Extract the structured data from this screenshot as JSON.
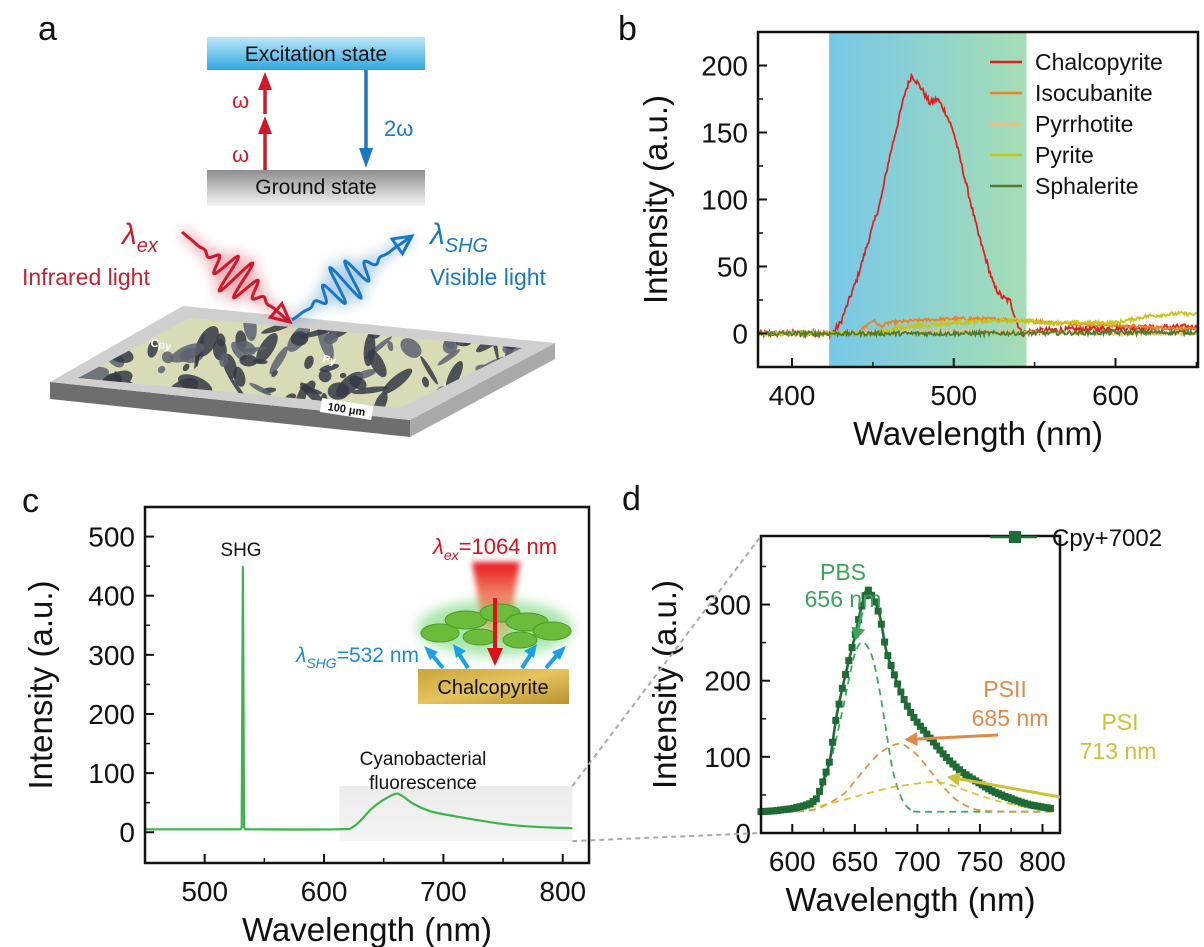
{
  "panel_labels": {
    "a": "a",
    "b": "b",
    "c": "c",
    "d": "d"
  },
  "panel_a": {
    "excitation_state": "Excitation state",
    "ground_state": "Ground state",
    "omega_upper": "ω",
    "omega_lower": "ω",
    "two_omega": "2ω",
    "lambda_ex_symbol": "λ",
    "lambda_ex_sub": "ex",
    "infrared_label": "Infrared light",
    "lambda_shg_symbol": "λ",
    "lambda_shg_sub": "SHG",
    "visible_label": "Visible light",
    "sample_label_cpy": "Cpy",
    "sample_label_py": "Py",
    "scale_bar": "100 μm",
    "colors": {
      "infrared": "#c8202f",
      "visible": "#1a78c2",
      "excitation_bar": "#3aaee6",
      "ground_bar": "#9a9a9a"
    }
  },
  "chart_data": [
    {
      "panel": "b",
      "type": "line",
      "xlabel": "Wavelength (nm)",
      "ylabel": "Intensity (a.u.)",
      "xlim": [
        379,
        651
      ],
      "ylim": [
        -25,
        225
      ],
      "xticks": [
        400,
        500,
        600
      ],
      "xminor": [
        450,
        550,
        650
      ],
      "yticks": [
        0,
        50,
        100,
        150,
        200
      ],
      "yminor": [
        25,
        75,
        125,
        175
      ],
      "shaded_region": {
        "x": [
          423,
          545
        ],
        "colors": [
          "#76c8e8",
          "#a6ddb4"
        ]
      },
      "grid": false,
      "legend": "top-right",
      "series": [
        {
          "name": "Chalcopyrite",
          "color": "#e0201e",
          "x": [
            379,
            425,
            430,
            440,
            445,
            450,
            455,
            460,
            465,
            470,
            474,
            480,
            485,
            490,
            495,
            500,
            505,
            510,
            515,
            520,
            525,
            530,
            535,
            538,
            542,
            550,
            600,
            651
          ],
          "y": [
            0,
            0,
            8,
            40,
            60,
            80,
            100,
            130,
            155,
            180,
            193,
            183,
            172,
            175,
            165,
            150,
            125,
            100,
            75,
            55,
            35,
            27,
            24,
            12,
            0,
            2,
            4,
            5
          ]
        },
        {
          "name": "Isocubanite",
          "color": "#f08020",
          "x": [
            379,
            440,
            450,
            455,
            460,
            480,
            500,
            520,
            540,
            560,
            600,
            651
          ],
          "y": [
            0,
            0,
            10,
            5,
            8,
            10,
            11,
            11,
            10,
            8,
            6,
            3
          ]
        },
        {
          "name": "Pyrrhotite",
          "color": "#f9b97a",
          "x": [
            379,
            450,
            500,
            550,
            600,
            651
          ],
          "y": [
            0,
            1,
            2,
            1,
            0,
            0
          ]
        },
        {
          "name": "Pyrite",
          "color": "#c7c41a",
          "x": [
            379,
            450,
            470,
            500,
            540,
            560,
            600,
            620,
            640,
            651
          ],
          "y": [
            0,
            0,
            5,
            8,
            10,
            8,
            8,
            13,
            15,
            14
          ]
        },
        {
          "name": "Sphalerite",
          "color": "#4f7d2a",
          "x": [
            379,
            500,
            651
          ],
          "y": [
            0,
            0,
            1
          ]
        }
      ]
    },
    {
      "panel": "c",
      "type": "line",
      "xlabel": "Wavelength (nm)",
      "ylabel": "Intensity (a.u.)",
      "xlim": [
        450,
        822
      ],
      "ylim": [
        -52,
        550
      ],
      "xticks": [
        500,
        600,
        700,
        800
      ],
      "xminor": [
        550,
        650,
        750
      ],
      "yticks": [
        0,
        100,
        200,
        300,
        400,
        500
      ],
      "yminor": [
        50,
        150,
        250,
        350,
        450
      ],
      "grid": false,
      "series": [
        {
          "color": "#3cb44b",
          "x": [
            450,
            530,
            531,
            532,
            533,
            534,
            610,
            625,
            640,
            650,
            660,
            665,
            675,
            690,
            710,
            730,
            750,
            770,
            790,
            808
          ],
          "y": [
            5,
            5,
            8,
            450,
            8,
            5,
            5,
            10,
            40,
            55,
            65,
            62,
            48,
            35,
            27,
            20,
            14,
            10,
            8,
            7
          ]
        }
      ],
      "highlight_box": {
        "x": [
          613,
          808
        ],
        "y": [
          -15,
          78
        ]
      },
      "annotations": {
        "shg": "SHG",
        "fluorescence_line1": "Cyanobacterial",
        "fluorescence_line2": "fluorescence"
      },
      "inset": {
        "lambda_ex_symbol": "λ",
        "lambda_ex_sub": "ex",
        "lambda_ex_value": "=1064 nm",
        "lambda_shg_symbol": "λ",
        "lambda_shg_sub": "SHG",
        "lambda_shg_value": "=532 nm",
        "substrate": "Chalcopyrite"
      }
    },
    {
      "panel": "d",
      "type": "line",
      "xlabel": "Wavelength (nm)",
      "ylabel": "Intensity (a.u.)",
      "xlim": [
        575,
        814
      ],
      "ylim": [
        0,
        390
      ],
      "xticks": [
        600,
        650,
        700,
        750,
        800
      ],
      "xminor": [
        625,
        675,
        725,
        775
      ],
      "yticks": [
        0,
        100,
        200,
        300
      ],
      "yminor": [
        50,
        150,
        250,
        350
      ],
      "grid": false,
      "legend": "top-right",
      "series": [
        {
          "name": "Cpy+7002",
          "color": "#1f6b35",
          "marker": "square",
          "x": [
            575,
            585,
            595,
            600,
            605,
            610,
            615,
            620,
            625,
            630,
            635,
            640,
            645,
            650,
            655,
            660,
            665,
            670,
            675,
            680,
            685,
            690,
            695,
            700,
            705,
            710,
            715,
            720,
            725,
            730,
            735,
            740,
            745,
            750,
            760,
            770,
            780,
            790,
            800,
            808
          ],
          "y": [
            28,
            29,
            31,
            32,
            34,
            36,
            39,
            46,
            70,
            95,
            150,
            190,
            225,
            258,
            295,
            321,
            308,
            285,
            240,
            215,
            192,
            173,
            157,
            145,
            135,
            125,
            115,
            105,
            96,
            88,
            81,
            75,
            70,
            65,
            55,
            48,
            42,
            37,
            34,
            32
          ]
        },
        {
          "label": "PBS",
          "color": "#3caa5a",
          "dashed": true,
          "x": [
            575,
            610,
            620,
            630,
            640,
            645,
            650,
            655,
            660,
            665,
            670,
            675,
            680,
            685,
            690,
            695,
            700,
            750,
            808
          ],
          "y": [
            28,
            32,
            45,
            90,
            160,
            200,
            235,
            250,
            245,
            225,
            185,
            135,
            85,
            55,
            38,
            30,
            28,
            28,
            28
          ]
        },
        {
          "label": "PSII",
          "color": "#e8904a",
          "dashed": true,
          "x": [
            575,
            600,
            620,
            640,
            650,
            660,
            670,
            680,
            686,
            690,
            700,
            710,
            720,
            730,
            740,
            750,
            770,
            808
          ],
          "y": [
            27,
            28,
            32,
            50,
            68,
            88,
            105,
            115,
            117,
            115,
            102,
            82,
            62,
            45,
            35,
            30,
            28,
            28
          ]
        },
        {
          "label": "PSI",
          "color": "#d9c531",
          "dashed": true,
          "x": [
            575,
            600,
            620,
            640,
            660,
            680,
            700,
            713,
            725,
            740,
            760,
            780,
            800,
            808
          ],
          "y": [
            27,
            30,
            35,
            43,
            52,
            60,
            65,
            67,
            64,
            55,
            44,
            36,
            31,
            30
          ]
        }
      ],
      "annotations": {
        "pbs_name": "PBS",
        "pbs_peak": "656 nm",
        "psii_name": "PSII",
        "psii_peak": "685 nm",
        "psi_name": "PSI",
        "psi_peak": "713 nm"
      }
    }
  ]
}
